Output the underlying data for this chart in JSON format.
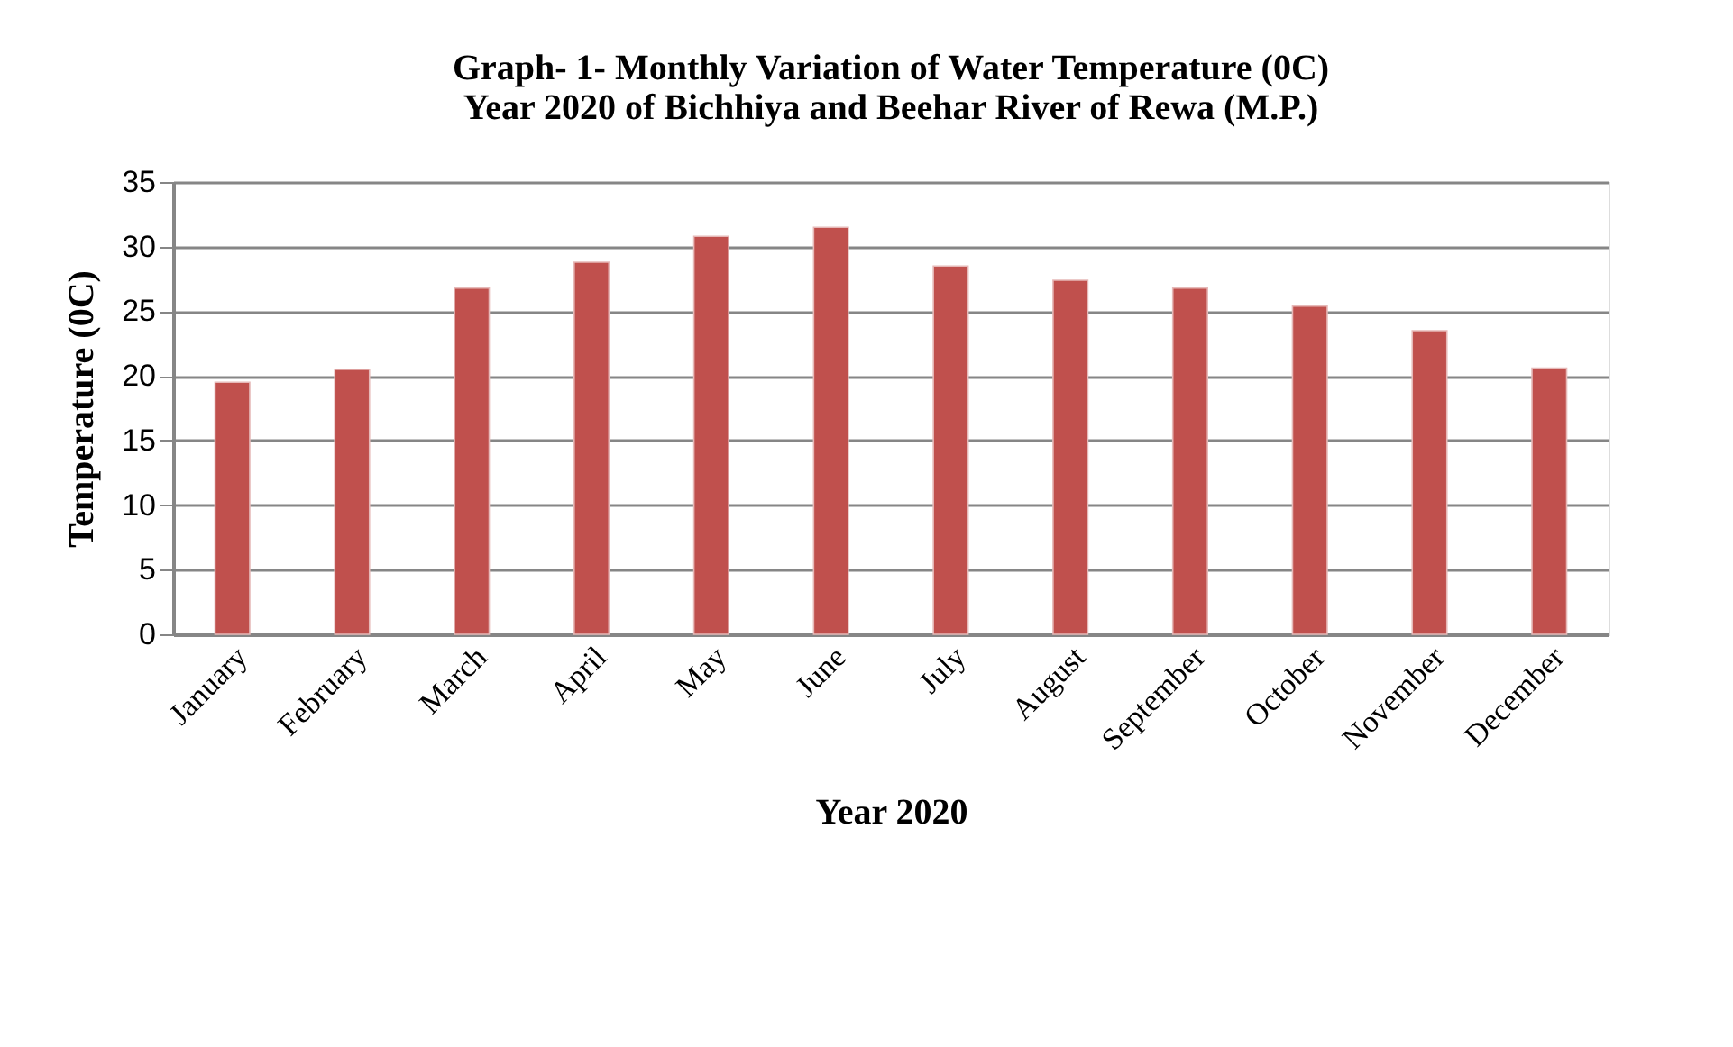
{
  "chart_data": {
    "type": "bar",
    "title": [
      "Graph- 1- Monthly Variation of Water Temperature (0C)",
      "Year 2020  of Bichhiya and Beehar River of Rewa (M.P.)"
    ],
    "xlabel": "Year 2020",
    "ylabel": "Temperature (0C)",
    "categories": [
      "January",
      "February",
      "March",
      "April",
      "May",
      "June",
      "July",
      "August",
      "September",
      "October",
      "November",
      "December"
    ],
    "values": [
      19.5,
      20.5,
      26.8,
      28.8,
      30.8,
      31.5,
      28.5,
      27.4,
      26.8,
      25.4,
      23.5,
      20.6
    ],
    "color": "#c0504d",
    "ylim": [
      0,
      35
    ],
    "yticks": [
      0,
      5,
      10,
      15,
      20,
      25,
      30,
      35
    ],
    "grid": true
  }
}
